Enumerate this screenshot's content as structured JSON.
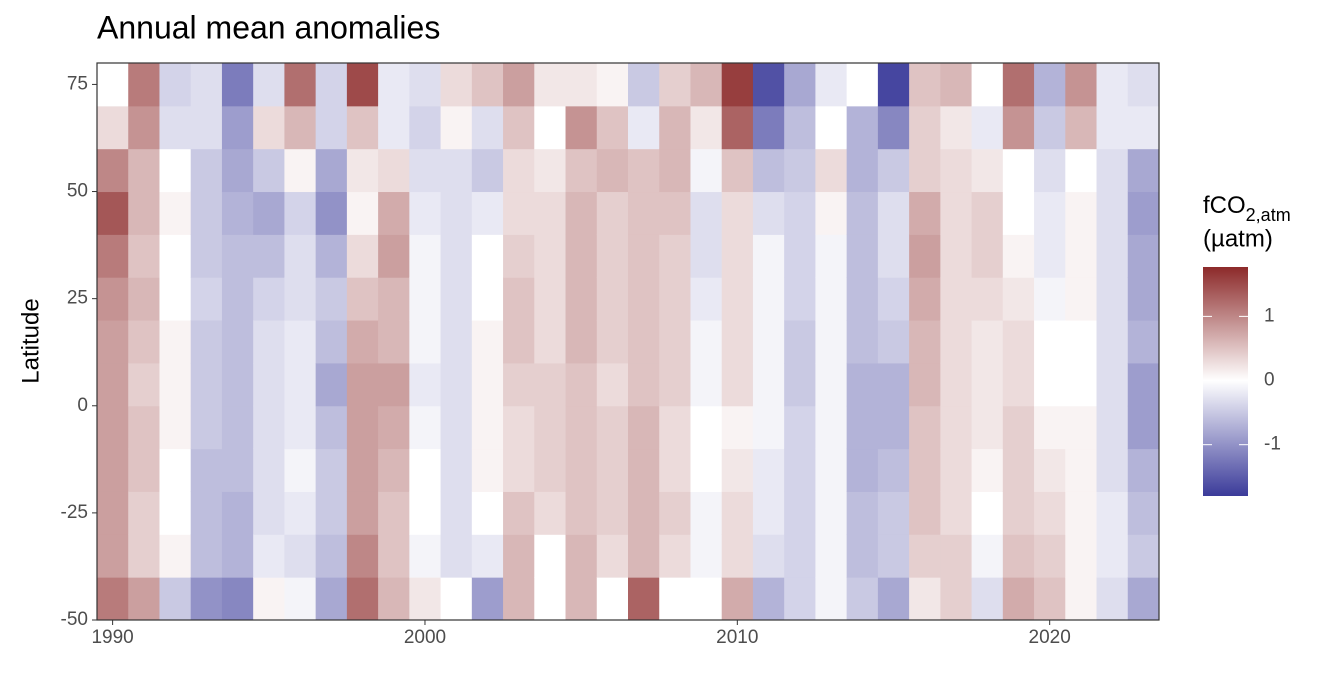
{
  "chart_data": {
    "type": "heatmap",
    "title": "Annual mean anomalies",
    "y_label": "Latitude",
    "x": [
      1990,
      1991,
      1992,
      1993,
      1994,
      1995,
      1996,
      1997,
      1998,
      1999,
      2000,
      2001,
      2002,
      2003,
      2004,
      2005,
      2006,
      2007,
      2008,
      2009,
      2010,
      2011,
      2012,
      2013,
      2014,
      2015,
      2016,
      2017,
      2018,
      2019,
      2020,
      2021,
      2022,
      2023
    ],
    "y": [
      -45,
      -35,
      -25,
      -15,
      -5,
      5,
      15,
      25,
      35,
      45,
      55,
      65,
      75
    ],
    "values": [
      [
        1.1,
        0.8,
        0.8,
        0.8,
        0.8,
        0.8,
        0.8,
        0.9,
        1.1,
        1.4,
        1.0,
        0.3,
        0
      ],
      [
        0.8,
        0.4,
        0.4,
        0.5,
        0.5,
        0.4,
        0.5,
        0.6,
        0.5,
        0.6,
        0.6,
        0.9,
        1.1
      ],
      [
        -0.5,
        0.1,
        0,
        0,
        0.1,
        0.1,
        0.1,
        0,
        0,
        0.1,
        0,
        -0.3,
        -0.4
      ],
      [
        -1.0,
        -0.6,
        -0.6,
        -0.6,
        -0.5,
        -0.5,
        -0.5,
        -0.4,
        -0.5,
        -0.5,
        -0.5,
        -0.3,
        -0.3
      ],
      [
        -1.1,
        -0.7,
        -0.7,
        -0.6,
        -0.6,
        -0.6,
        -0.6,
        -0.6,
        -0.6,
        -0.7,
        -0.8,
        -0.9,
        -1.2
      ],
      [
        0.1,
        -0.2,
        -0.3,
        -0.3,
        -0.3,
        -0.3,
        -0.3,
        -0.4,
        -0.6,
        -0.8,
        -0.5,
        0.3,
        -0.3
      ],
      [
        -0.1,
        -0.3,
        -0.2,
        -0.1,
        -0.2,
        -0.2,
        -0.2,
        -0.3,
        -0.3,
        -0.4,
        0.1,
        0.6,
        1.2
      ],
      [
        -0.8,
        -0.6,
        -0.5,
        -0.5,
        -0.6,
        -0.8,
        -0.6,
        -0.5,
        -0.7,
        -1.0,
        -0.8,
        -0.4,
        -0.4
      ],
      [
        1.2,
        1.0,
        0.8,
        0.8,
        0.8,
        0.8,
        0.7,
        0.5,
        0.3,
        0.1,
        0.2,
        0.5,
        1.5
      ],
      [
        0.6,
        0.5,
        0.5,
        0.6,
        0.7,
        0.8,
        0.6,
        0.6,
        0.8,
        0.7,
        0.3,
        -0.2,
        -0.2
      ],
      [
        0.2,
        -0.1,
        0,
        0,
        -0.1,
        -0.2,
        -0.1,
        -0.1,
        -0.1,
        -0.2,
        -0.3,
        -0.4,
        -0.3
      ],
      [
        0,
        -0.3,
        -0.3,
        -0.3,
        -0.3,
        -0.3,
        -0.3,
        -0.3,
        -0.3,
        -0.3,
        -0.3,
        0.1,
        0.3
      ],
      [
        -0.9,
        -0.2,
        0,
        0.1,
        0.1,
        0.1,
        0.1,
        0,
        0,
        -0.2,
        -0.5,
        -0.3,
        0.5
      ],
      [
        0.6,
        0.6,
        0.5,
        0.3,
        0.3,
        0.4,
        0.5,
        0.5,
        0.4,
        0.3,
        0.3,
        0.5,
        0.8
      ],
      [
        0,
        0,
        0.3,
        0.4,
        0.4,
        0.4,
        0.3,
        0.3,
        0.3,
        0.3,
        0.2,
        0,
        0.2
      ],
      [
        0.6,
        0.6,
        0.5,
        0.5,
        0.5,
        0.5,
        0.6,
        0.6,
        0.6,
        0.6,
        0.5,
        0.9,
        0.2
      ],
      [
        0,
        0.3,
        0.4,
        0.4,
        0.4,
        0.3,
        0.4,
        0.4,
        0.4,
        0.4,
        0.6,
        0.5,
        0.1
      ],
      [
        1.3,
        0.6,
        0.6,
        0.6,
        0.6,
        0.5,
        0.5,
        0.5,
        0.5,
        0.5,
        0.5,
        -0.2,
        -0.5
      ],
      [
        0,
        0.3,
        0.4,
        0.3,
        0.3,
        0.4,
        0.4,
        0.4,
        0.4,
        0.5,
        0.6,
        0.6,
        0.4
      ],
      [
        0,
        -0.1,
        -0.1,
        0,
        0,
        -0.1,
        -0.1,
        -0.2,
        -0.3,
        -0.3,
        -0.1,
        0.2,
        0.6
      ],
      [
        0.7,
        0.3,
        0.3,
        0.2,
        0.1,
        0.3,
        0.3,
        0.3,
        0.3,
        0.3,
        0.5,
        1.3,
        1.6
      ],
      [
        -0.7,
        -0.3,
        -0.2,
        -0.2,
        -0.1,
        -0.1,
        -0.1,
        -0.1,
        -0.1,
        -0.3,
        -0.6,
        -1.2,
        -1.6
      ],
      [
        -0.4,
        -0.4,
        -0.4,
        -0.4,
        -0.4,
        -0.5,
        -0.5,
        -0.4,
        -0.4,
        -0.4,
        -0.5,
        -0.6,
        -0.8
      ],
      [
        -0.1,
        -0.1,
        -0.1,
        -0.1,
        -0.1,
        -0.1,
        -0.1,
        -0.1,
        -0.1,
        0.1,
        0.3,
        0,
        -0.2
      ],
      [
        -0.5,
        -0.6,
        -0.6,
        -0.7,
        -0.7,
        -0.7,
        -0.6,
        -0.6,
        -0.6,
        -0.6,
        -0.7,
        -0.7,
        0
      ],
      [
        -0.8,
        -0.5,
        -0.5,
        -0.6,
        -0.7,
        -0.7,
        -0.5,
        -0.4,
        -0.3,
        -0.3,
        -0.5,
        -1.1,
        -1.7
      ],
      [
        0.2,
        0.4,
        0.5,
        0.5,
        0.5,
        0.6,
        0.6,
        0.7,
        0.8,
        0.7,
        0.4,
        0.4,
        0.5
      ],
      [
        0.4,
        0.4,
        0.3,
        0.3,
        0.3,
        0.3,
        0.3,
        0.3,
        0.3,
        0.3,
        0.3,
        0.2,
        0.6
      ],
      [
        -0.3,
        -0.1,
        0,
        0.1,
        0.2,
        0.2,
        0.2,
        0.3,
        0.4,
        0.4,
        0.2,
        -0.2,
        0
      ],
      [
        0.7,
        0.5,
        0.4,
        0.4,
        0.4,
        0.3,
        0.3,
        0.2,
        0.1,
        0,
        0,
        0.9,
        1.2
      ],
      [
        0.5,
        0.4,
        0.3,
        0.2,
        0.1,
        0,
        0,
        -0.1,
        -0.2,
        -0.2,
        -0.3,
        -0.5,
        -0.7
      ],
      [
        0.1,
        0.1,
        0.1,
        0.1,
        0.1,
        0,
        0,
        0.1,
        0.1,
        0.1,
        0,
        0.6,
        0.9
      ],
      [
        -0.3,
        -0.2,
        -0.2,
        -0.3,
        -0.3,
        -0.3,
        -0.3,
        -0.3,
        -0.3,
        -0.3,
        -0.3,
        -0.2,
        -0.2
      ],
      [
        -0.8,
        -0.5,
        -0.6,
        -0.7,
        -0.9,
        -0.9,
        -0.7,
        -0.8,
        -0.8,
        -0.9,
        -0.8,
        -0.2,
        -0.3
      ]
    ],
    "xlim": [
      1989.5,
      2023.5
    ],
    "xticks": [
      1990,
      2000,
      2010,
      2020
    ],
    "ylim": [
      -50,
      80
    ],
    "yticks": [
      -50,
      -25,
      0,
      25,
      50,
      75
    ],
    "colors": [
      "#3b3b9a",
      "#ffffff",
      "#8c2a2a"
    ],
    "colorlim": [
      -1.8,
      1.77
    ],
    "colorbar_ticks": [
      -1,
      0,
      1
    ],
    "legend_title": {
      "main": "fCO",
      "sub": "2,atm",
      "unit": "(µatm)"
    }
  }
}
